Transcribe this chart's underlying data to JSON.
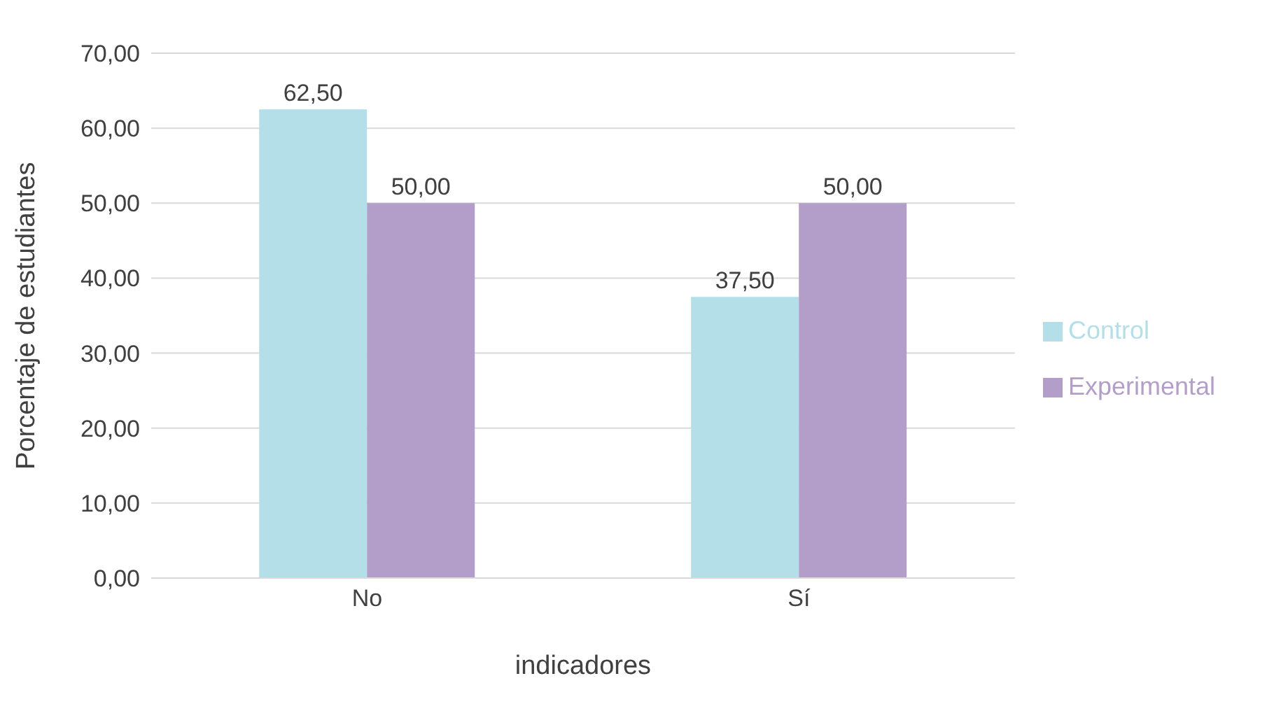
{
  "chart_data": {
    "type": "bar",
    "xlabel": "indicadores",
    "ylabel": "Porcentaje de estudiantes",
    "categories": [
      "No",
      "Sí"
    ],
    "series": [
      {
        "name": "Control",
        "color": "#b4dfe8",
        "values": [
          62.5,
          37.5
        ],
        "value_labels": [
          "62,50",
          "37,50"
        ]
      },
      {
        "name": "Experimental",
        "color": "#b29ec8",
        "values": [
          50,
          50
        ],
        "value_labels": [
          "50,00",
          "50,00"
        ]
      }
    ],
    "ylim": [
      0,
      70
    ],
    "yticks": [
      {
        "value": 0,
        "label": "0,00"
      },
      {
        "value": 10,
        "label": "10,00"
      },
      {
        "value": 20,
        "label": "20,00"
      },
      {
        "value": 30,
        "label": "30,00"
      },
      {
        "value": 40,
        "label": "40,00"
      },
      {
        "value": 50,
        "label": "50,00"
      },
      {
        "value": 60,
        "label": "60,00"
      },
      {
        "value": 70,
        "label": "70,00"
      }
    ],
    "grid": "y",
    "legend": "right"
  }
}
